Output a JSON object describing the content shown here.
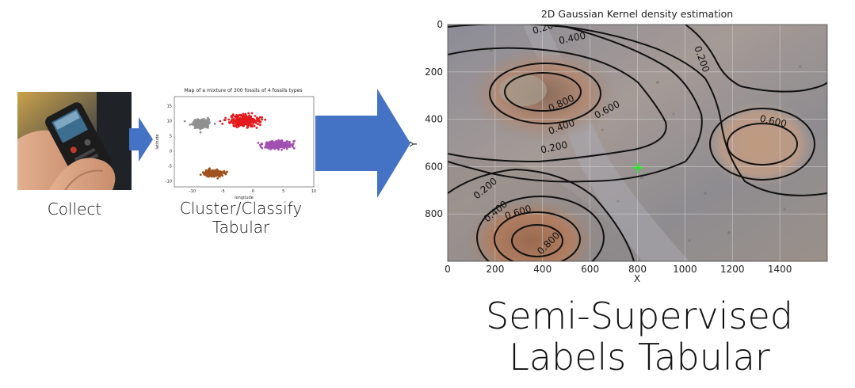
{
  "steps": {
    "collect": {
      "label": "Collect",
      "icon": "gps-device-photo-icon"
    },
    "cluster": {
      "label_line1": "Cluster/Classify",
      "label_line2": "Tabular"
    },
    "result": {
      "label_line1": "Semi-Supervised",
      "label_line2": "Labels Tabular"
    }
  },
  "colors": {
    "arrow": "#4472c4"
  },
  "scatter": {
    "title": "Map of a mixture of 300 fossils of 4 fossils types",
    "xlabel": "longitude",
    "ylabel": "latitude",
    "x_ticks": [
      "-10",
      "-5",
      "0",
      "5",
      "10"
    ],
    "y_ticks": [
      "15",
      "10",
      "5",
      "0",
      "-5",
      "-10"
    ],
    "clusters": [
      {
        "color": "#909090",
        "center": [
          -8.5,
          9
        ],
        "spread": [
          1.2,
          1.2
        ]
      },
      {
        "color": "#e31a1c",
        "center": [
          -1.5,
          10
        ],
        "spread": [
          2.2,
          1.8
        ]
      },
      {
        "color": "#a050b0",
        "center": [
          4,
          2
        ],
        "spread": [
          2.0,
          1.1
        ]
      },
      {
        "color": "#a0521e",
        "center": [
          -6.5,
          -7.5
        ],
        "spread": [
          1.3,
          0.9
        ]
      }
    ]
  },
  "kde": {
    "title": "2D Gaussian Kernel density estimation",
    "xlabel": "X",
    "ylabel": "Y",
    "x_ticks": [
      "0",
      "200",
      "400",
      "600",
      "800",
      "1000",
      "1200",
      "1400"
    ],
    "y_ticks": [
      "0",
      "200",
      "400",
      "600",
      "800"
    ],
    "contour_labels": [
      "0.200",
      "0.400",
      "0.800",
      "0.600",
      "0.400",
      "0.200",
      "0.200",
      "0.600",
      "0.200",
      "0.400",
      "0.600",
      "0.800"
    ],
    "marker": {
      "x": 800,
      "y": 600,
      "color": "#22ee22"
    }
  }
}
